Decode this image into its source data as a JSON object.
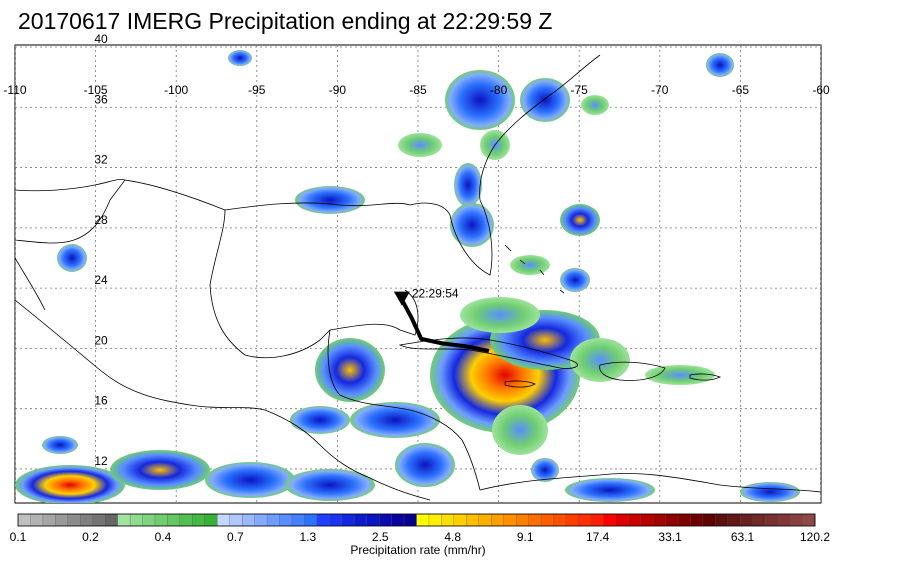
{
  "title": "20170617 IMERG Precipitation ending at 22:29:59 Z",
  "map": {
    "lon_range": [
      -110,
      -60
    ],
    "lat_range": [
      9.5,
      40
    ],
    "lon_ticks": [
      -110,
      -105,
      -100,
      -95,
      -90,
      -85,
      -80,
      -75,
      -70,
      -65,
      -60
    ],
    "lat_ticks": [
      40,
      36,
      32,
      28,
      24,
      20,
      16,
      12
    ],
    "lon_tick_labels": [
      "-110",
      "-105",
      "-100",
      "-95",
      "-90",
      "-85",
      "-80",
      "-75",
      "-70",
      "-65",
      "-60"
    ],
    "lat_tick_labels": [
      "40",
      "36",
      "32",
      "28",
      "24",
      "20",
      "16",
      "12"
    ],
    "grid": "dotted",
    "track": {
      "label": "22:29:54",
      "points": [
        [
          -86.0,
          23.1
        ],
        [
          -85.4,
          21.9
        ],
        [
          -84.8,
          20.5
        ],
        [
          -83.5,
          20.2
        ],
        [
          -82.0,
          20.0
        ],
        [
          -80.6,
          19.7
        ]
      ],
      "marker": "triangle-down"
    },
    "coastline_color": "#000000",
    "track_color": "#000000"
  },
  "colorbar": {
    "title": "Precipitation rate (mm/hr)",
    "labels": [
      "0.1",
      "0.2",
      "0.4",
      "0.7",
      "1.3",
      "2.5",
      "4.8",
      "9.1",
      "17.4",
      "33.1",
      "63.1",
      "120.2"
    ],
    "colors": [
      "#bfbfbf",
      "#b3b3b3",
      "#a6a6a6",
      "#999999",
      "#8c8c8c",
      "#808080",
      "#737373",
      "#666666",
      "#9ee39e",
      "#8fdc8f",
      "#7fd57f",
      "#70ce70",
      "#61c761",
      "#52c052",
      "#43b943",
      "#35b235",
      "#c6d6ff",
      "#b0c8ff",
      "#9ab9ff",
      "#84abff",
      "#6e9dff",
      "#588eff",
      "#4280ff",
      "#2c72ff",
      "#2040ff",
      "#1a34f0",
      "#1428e0",
      "#0e1cd0",
      "#0a14c0",
      "#0a0cb0",
      "#0800a0",
      "#06008f",
      "#ffff00",
      "#ffef00",
      "#ffdf00",
      "#ffcf00",
      "#ffbf00",
      "#ffaf00",
      "#ff9f00",
      "#ff8f00",
      "#ff7f00",
      "#ff6f00",
      "#ff5f00",
      "#ff4f00",
      "#ff3f00",
      "#ff2f00",
      "#ff1f00",
      "#ff0000",
      "#e00000",
      "#cc0000",
      "#b80000",
      "#a40000",
      "#900000",
      "#800000",
      "#700000",
      "#600000",
      "#5a1010",
      "#601818",
      "#682020",
      "#702828",
      "#783030",
      "#803838",
      "#884040",
      "#904848"
    ]
  }
}
